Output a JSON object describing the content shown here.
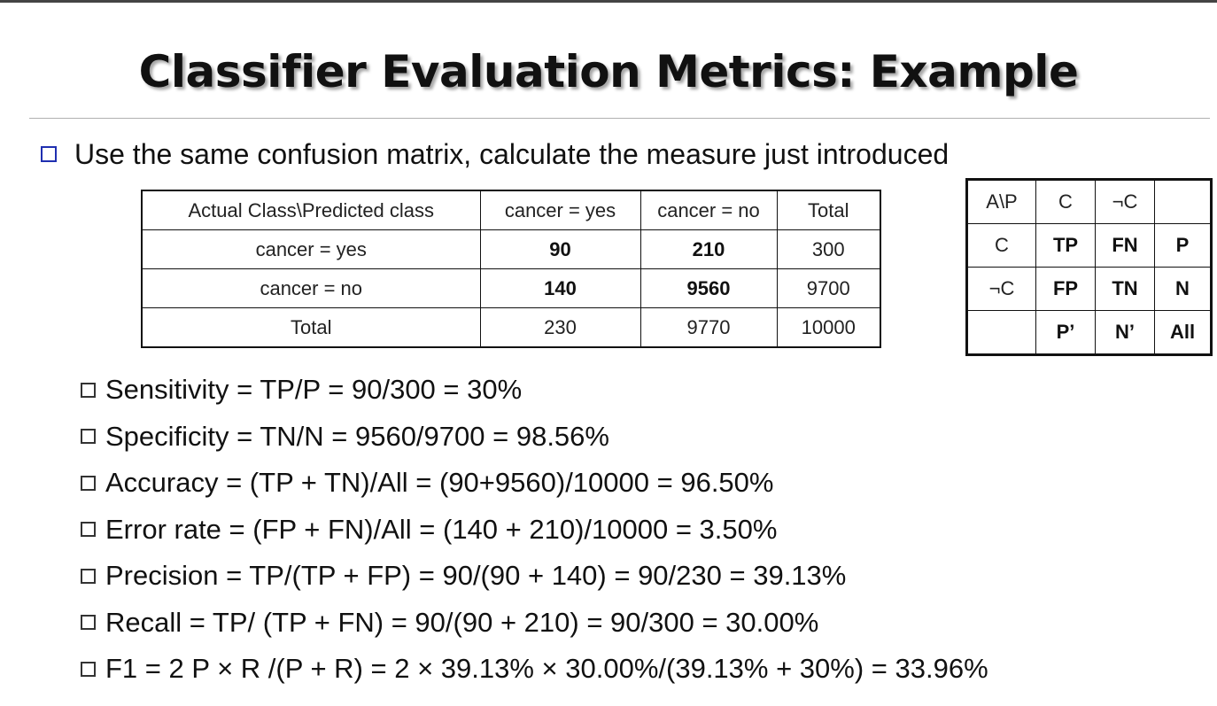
{
  "title": "Classifier Evaluation Metrics: Example",
  "intro": "Use the same confusion matrix, calculate the measure just introduced",
  "confusion_matrix": {
    "header": [
      "Actual Class\\Predicted class",
      "cancer = yes",
      "cancer = no",
      "Total"
    ],
    "rows": [
      [
        "cancer = yes",
        "90",
        "210",
        "300"
      ],
      [
        "cancer = no",
        "140",
        "9560",
        "9700"
      ],
      [
        "Total",
        "230",
        "9770",
        "10000"
      ]
    ]
  },
  "reference_matrix": {
    "rows": [
      [
        "A\\P",
        "C",
        "¬C",
        ""
      ],
      [
        "C",
        "TP",
        "FN",
        "P"
      ],
      [
        "¬C",
        "FP",
        "TN",
        "N"
      ],
      [
        "",
        "P’",
        "N’",
        "All"
      ]
    ]
  },
  "metrics": [
    "Sensitivity = TP/P = 90/300 = 30%",
    "Specificity = TN/N = 9560/9700 = 98.56%",
    "Accuracy = (TP + TN)/All = (90+9560)/10000 = 96.50%",
    "Error rate = (FP + FN)/All = (140 + 210)/10000 = 3.50%",
    "Precision = TP/(TP + FP) = 90/(90 + 140) = 90/230 = 39.13%",
    "Recall = TP/ (TP + FN) = 90/(90 + 210) = 90/300 = 30.00%",
    "F1 = 2 P × R /(P + R) = 2 × 39.13% × 30.00%/(39.13% + 30%) = 33.96%"
  ]
}
